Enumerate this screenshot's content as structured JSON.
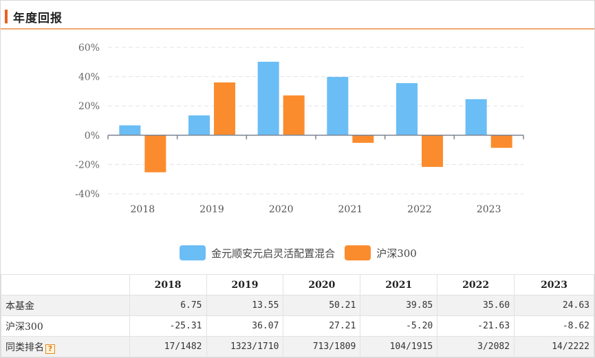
{
  "header": {
    "title": "年度回报"
  },
  "colors": {
    "fund": "#6bbdf5",
    "index": "#fb8c2e",
    "accent": "#e8621f"
  },
  "chart_data": {
    "type": "bar",
    "categories": [
      "2018",
      "2019",
      "2020",
      "2021",
      "2022",
      "2023"
    ],
    "series": [
      {
        "name": "金元顺安元启灵活配置混合",
        "values": [
          6.75,
          13.55,
          50.21,
          39.85,
          35.6,
          24.63
        ]
      },
      {
        "name": "沪深300",
        "values": [
          -25.31,
          36.07,
          27.21,
          -5.2,
          -21.63,
          -8.62
        ]
      }
    ],
    "ylim": [
      -40,
      60
    ],
    "yticks": [
      "60%",
      "40%",
      "20%",
      "0%",
      "-20%",
      "-40%"
    ],
    "ytick_values": [
      60,
      40,
      20,
      0,
      -20,
      -40
    ],
    "grid": true,
    "legend_position": "bottom-center"
  },
  "table": {
    "headers": [
      "",
      "2018",
      "2019",
      "2020",
      "2021",
      "2022",
      "2023"
    ],
    "rows": [
      {
        "label": "本基金",
        "cells": [
          "6.75",
          "13.55",
          "50.21",
          "39.85",
          "35.60",
          "24.63"
        ]
      },
      {
        "label": "沪深300",
        "cells": [
          "-25.31",
          "36.07",
          "27.21",
          "-5.20",
          "-21.63",
          "-8.62"
        ]
      },
      {
        "label": "同类排名",
        "cells": [
          "17/1482",
          "1323/1710",
          "713/1809",
          "104/1915",
          "3/2082",
          "14/2222"
        ],
        "help_icon": "question-mark-icon"
      }
    ]
  }
}
